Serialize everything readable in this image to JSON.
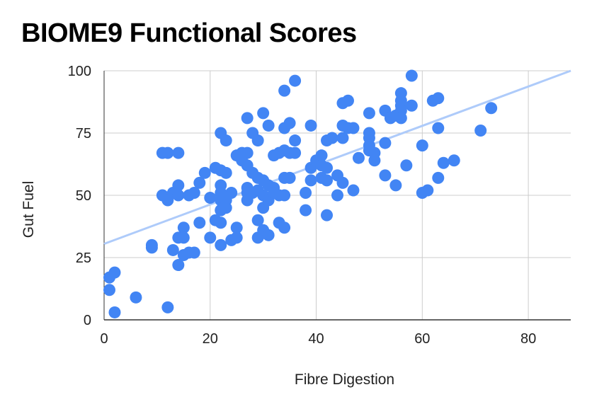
{
  "chart_data": {
    "type": "scatter",
    "title": "BIOME9 Functional Scores",
    "xlabel": "Fibre Digestion",
    "ylabel": "Gut Fuel",
    "xlim": [
      0,
      88
    ],
    "ylim": [
      0,
      100
    ],
    "x_ticks": [
      "0",
      "20",
      "40",
      "60",
      "80"
    ],
    "y_ticks": [
      "0",
      "25",
      "50",
      "75",
      "100"
    ],
    "grid": true,
    "legend": "none",
    "point_color": "#4285f4",
    "trendline_color": "#aecbfa",
    "trendline": {
      "x": [
        0,
        88
      ],
      "y": [
        30.5,
        100
      ]
    },
    "points": [
      [
        1,
        17
      ],
      [
        1,
        12
      ],
      [
        2,
        19
      ],
      [
        2,
        3
      ],
      [
        6,
        9
      ],
      [
        9,
        30
      ],
      [
        9,
        29
      ],
      [
        11,
        67
      ],
      [
        11,
        50
      ],
      [
        12,
        67
      ],
      [
        12,
        48
      ],
      [
        12,
        5
      ],
      [
        13,
        51
      ],
      [
        13,
        28
      ],
      [
        14,
        67
      ],
      [
        14,
        54
      ],
      [
        14,
        50
      ],
      [
        14,
        33
      ],
      [
        14,
        22
      ],
      [
        15,
        37
      ],
      [
        15,
        33
      ],
      [
        15,
        26
      ],
      [
        16,
        50
      ],
      [
        16,
        27
      ],
      [
        17,
        51
      ],
      [
        17,
        27
      ],
      [
        18,
        55
      ],
      [
        18,
        39
      ],
      [
        19,
        59
      ],
      [
        20,
        49
      ],
      [
        20,
        33
      ],
      [
        21,
        61
      ],
      [
        21,
        40
      ],
      [
        22,
        75
      ],
      [
        22,
        60
      ],
      [
        22,
        54
      ],
      [
        22,
        51
      ],
      [
        22,
        48
      ],
      [
        22,
        44
      ],
      [
        22,
        39
      ],
      [
        22,
        30
      ],
      [
        23,
        72
      ],
      [
        23,
        59
      ],
      [
        23,
        48
      ],
      [
        23,
        45
      ],
      [
        24,
        51
      ],
      [
        24,
        32
      ],
      [
        25,
        66
      ],
      [
        25,
        37
      ],
      [
        25,
        33
      ],
      [
        26,
        67
      ],
      [
        26,
        64
      ],
      [
        27,
        81
      ],
      [
        27,
        67
      ],
      [
        27,
        62
      ],
      [
        27,
        53
      ],
      [
        27,
        51
      ],
      [
        27,
        48
      ],
      [
        28,
        75
      ],
      [
        28,
        59
      ],
      [
        28,
        51
      ],
      [
        29,
        72
      ],
      [
        29,
        57
      ],
      [
        29,
        52
      ],
      [
        29,
        40
      ],
      [
        29,
        33
      ],
      [
        30,
        83
      ],
      [
        30,
        56
      ],
      [
        30,
        50
      ],
      [
        30,
        45
      ],
      [
        30,
        36
      ],
      [
        31,
        78
      ],
      [
        31,
        54
      ],
      [
        31,
        48
      ],
      [
        31,
        34
      ],
      [
        32,
        66
      ],
      [
        32,
        53
      ],
      [
        32,
        51
      ],
      [
        33,
        67
      ],
      [
        33,
        50
      ],
      [
        33,
        39
      ],
      [
        34,
        92
      ],
      [
        34,
        77
      ],
      [
        34,
        68
      ],
      [
        34,
        57
      ],
      [
        34,
        50
      ],
      [
        34,
        37
      ],
      [
        35,
        79
      ],
      [
        35,
        67
      ],
      [
        35,
        57
      ],
      [
        36,
        96
      ],
      [
        36,
        72
      ],
      [
        36,
        67
      ],
      [
        38,
        51
      ],
      [
        38,
        44
      ],
      [
        39,
        78
      ],
      [
        39,
        61
      ],
      [
        39,
        56
      ],
      [
        40,
        64
      ],
      [
        41,
        66
      ],
      [
        41,
        62
      ],
      [
        41,
        57
      ],
      [
        42,
        72
      ],
      [
        42,
        61
      ],
      [
        42,
        56
      ],
      [
        42,
        42
      ],
      [
        43,
        73
      ],
      [
        44,
        58
      ],
      [
        44,
        50
      ],
      [
        45,
        87
      ],
      [
        45,
        78
      ],
      [
        45,
        73
      ],
      [
        45,
        55
      ],
      [
        46,
        88
      ],
      [
        46,
        77
      ],
      [
        47,
        77
      ],
      [
        47,
        52
      ],
      [
        48,
        65
      ],
      [
        50,
        83
      ],
      [
        50,
        75
      ],
      [
        50,
        73
      ],
      [
        50,
        70
      ],
      [
        50,
        68
      ],
      [
        51,
        67
      ],
      [
        51,
        64
      ],
      [
        53,
        84
      ],
      [
        53,
        71
      ],
      [
        53,
        58
      ],
      [
        54,
        81
      ],
      [
        55,
        82
      ],
      [
        55,
        54
      ],
      [
        56,
        91
      ],
      [
        56,
        88
      ],
      [
        56,
        86
      ],
      [
        56,
        84
      ],
      [
        56,
        81
      ],
      [
        57,
        62
      ],
      [
        58,
        98
      ],
      [
        58,
        86
      ],
      [
        60,
        70
      ],
      [
        60,
        51
      ],
      [
        61,
        52
      ],
      [
        62,
        88
      ],
      [
        63,
        89
      ],
      [
        63,
        77
      ],
      [
        63,
        57
      ],
      [
        64,
        63
      ],
      [
        66,
        64
      ],
      [
        71,
        76
      ],
      [
        73,
        85
      ]
    ]
  }
}
